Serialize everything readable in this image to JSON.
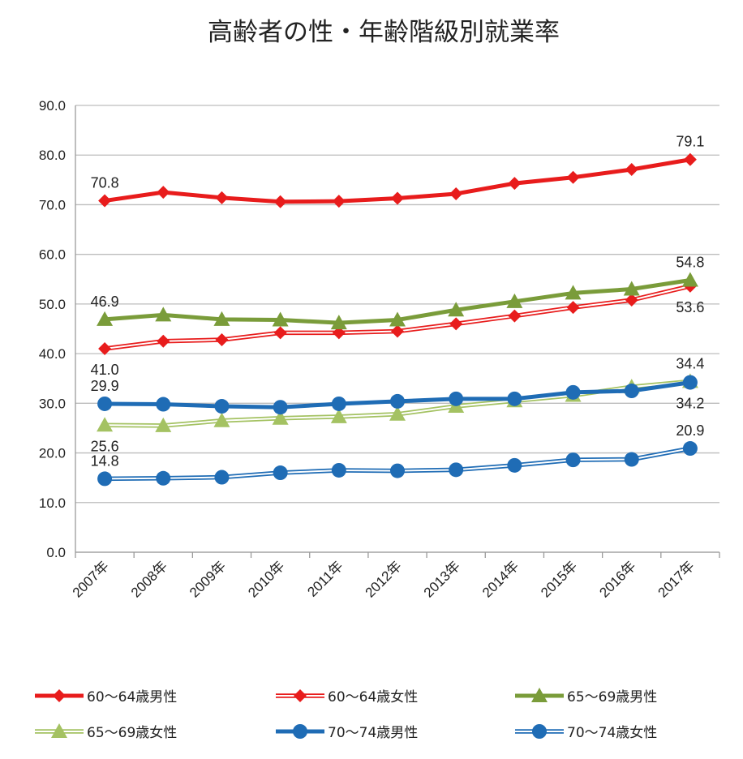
{
  "chart_data": {
    "type": "line",
    "title": "高齢者の性・年齢階級別就業率",
    "xlabel": "",
    "ylabel": "",
    "categories": [
      "2007年",
      "2008年",
      "2009年",
      "2010年",
      "2011年",
      "2012年",
      "2013年",
      "2014年",
      "2015年",
      "2016年",
      "2017年"
    ],
    "ylim": [
      0,
      90
    ],
    "yticks": [
      "0.0",
      "10.0",
      "20.0",
      "30.0",
      "40.0",
      "50.0",
      "60.0",
      "70.0",
      "80.0",
      "90.0"
    ],
    "grid": true,
    "legend_position": "bottom",
    "series": [
      {
        "name": "60～64歳男性",
        "color": "#e81c1c",
        "style": "solid",
        "marker": "diamond",
        "values": [
          70.8,
          72.5,
          71.4,
          70.6,
          70.7,
          71.3,
          72.2,
          74.3,
          75.5,
          77.1,
          79.1
        ]
      },
      {
        "name": "60～64歳女性",
        "color": "#e81c1c",
        "style": "double",
        "marker": "diamond",
        "values": [
          41.0,
          42.5,
          42.8,
          44.2,
          44.2,
          44.5,
          46.0,
          47.6,
          49.3,
          50.8,
          53.6
        ]
      },
      {
        "name": "65～69歳男性",
        "color": "#7a9c3a",
        "style": "solid",
        "marker": "triangle",
        "values": [
          46.9,
          47.8,
          46.9,
          46.8,
          46.2,
          46.8,
          48.8,
          50.5,
          52.2,
          53.0,
          54.8
        ]
      },
      {
        "name": "65～69歳女性",
        "color": "#a4c262",
        "style": "double",
        "marker": "triangle",
        "values": [
          25.6,
          25.5,
          26.5,
          27.0,
          27.3,
          27.8,
          29.4,
          30.5,
          31.6,
          33.3,
          34.4
        ]
      },
      {
        "name": "70～74歳男性",
        "color": "#1f6cb5",
        "style": "solid",
        "marker": "circle",
        "values": [
          29.9,
          29.8,
          29.4,
          29.2,
          29.9,
          30.4,
          30.9,
          30.9,
          32.2,
          32.5,
          34.2
        ]
      },
      {
        "name": "70～74歳女性",
        "color": "#1f6cb5",
        "style": "double",
        "marker": "circle",
        "values": [
          14.8,
          14.9,
          15.1,
          16.0,
          16.5,
          16.4,
          16.6,
          17.5,
          18.6,
          18.7,
          20.9
        ]
      }
    ],
    "data_labels": [
      {
        "text": "70.8",
        "series": 0,
        "index": 0,
        "pos": "above"
      },
      {
        "text": "79.1",
        "series": 0,
        "index": 10,
        "pos": "above"
      },
      {
        "text": "46.9",
        "series": 2,
        "index": 0,
        "pos": "above"
      },
      {
        "text": "54.8",
        "series": 2,
        "index": 10,
        "pos": "above"
      },
      {
        "text": "41.0",
        "series": 1,
        "index": 0,
        "pos": "below"
      },
      {
        "text": "53.6",
        "series": 1,
        "index": 10,
        "pos": "below"
      },
      {
        "text": "29.9",
        "series": 4,
        "index": 0,
        "pos": "above"
      },
      {
        "text": "34.4",
        "series": 3,
        "index": 10,
        "pos": "above"
      },
      {
        "text": "25.6",
        "series": 3,
        "index": 0,
        "pos": "below"
      },
      {
        "text": "34.2",
        "series": 4,
        "index": 10,
        "pos": "below"
      },
      {
        "text": "14.8",
        "series": 5,
        "index": 0,
        "pos": "above"
      },
      {
        "text": "20.9",
        "series": 5,
        "index": 10,
        "pos": "above"
      }
    ]
  }
}
